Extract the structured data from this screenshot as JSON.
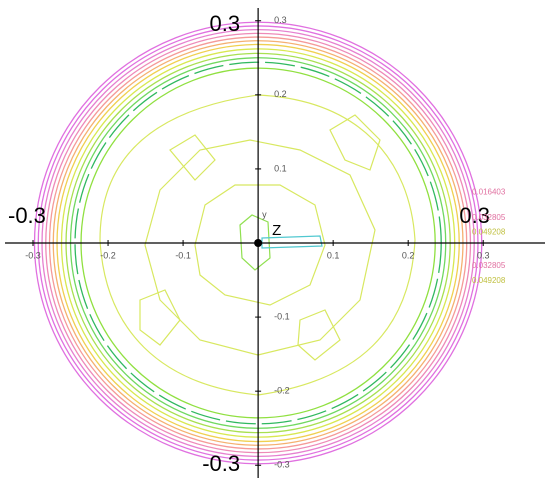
{
  "chart_data": {
    "type": "contour",
    "xlim": [
      -0.344,
      0.389
    ],
    "ylim": [
      -0.328,
      0.328
    ],
    "xticks": [
      -0.3,
      -0.2,
      -0.1,
      0.1,
      0.2,
      0.3
    ],
    "yticks": [
      -0.3,
      -0.2,
      -0.1,
      0.1,
      0.2,
      0.3
    ],
    "axis_end_labels": {
      "top": "0.3",
      "left": "-0.3",
      "right": "0.3",
      "bottom": "-0.3"
    },
    "axis_names": {
      "z": "Z",
      "y": "y"
    },
    "rings": [
      {
        "radius": 0.298,
        "color": "#e070e0"
      },
      {
        "radius": 0.293,
        "color": "#e070e0"
      },
      {
        "radius": 0.288,
        "color": "#e680d0"
      },
      {
        "radius": 0.283,
        "color": "#ee8ab8"
      },
      {
        "radius": 0.278,
        "color": "#f59a98"
      },
      {
        "radius": 0.273,
        "color": "#f5b070"
      },
      {
        "radius": 0.268,
        "color": "#f0d050"
      },
      {
        "radius": 0.262,
        "color": "#d8e850"
      },
      {
        "radius": 0.256,
        "color": "#a8e050"
      },
      {
        "radius": 0.25,
        "color": "#70d860"
      },
      {
        "radius": 0.244,
        "color": "#30b860"
      },
      {
        "radius": 0.236,
        "color": "#90e040"
      }
    ],
    "annotations": [
      {
        "text": "0.016403",
        "x": 0.285,
        "y": 0.068,
        "color": "#e070a0"
      },
      {
        "text": "0.032805",
        "x": 0.285,
        "y": 0.034,
        "color": "#e070a0"
      },
      {
        "text": "0.049208",
        "x": 0.285,
        "y": 0.014,
        "color": "#c0c040"
      },
      {
        "text": "0.032805",
        "x": 0.285,
        "y": -0.031,
        "color": "#e070a0"
      },
      {
        "text": "0.049208",
        "x": 0.285,
        "y": -0.051,
        "color": "#c0c040"
      }
    ]
  }
}
